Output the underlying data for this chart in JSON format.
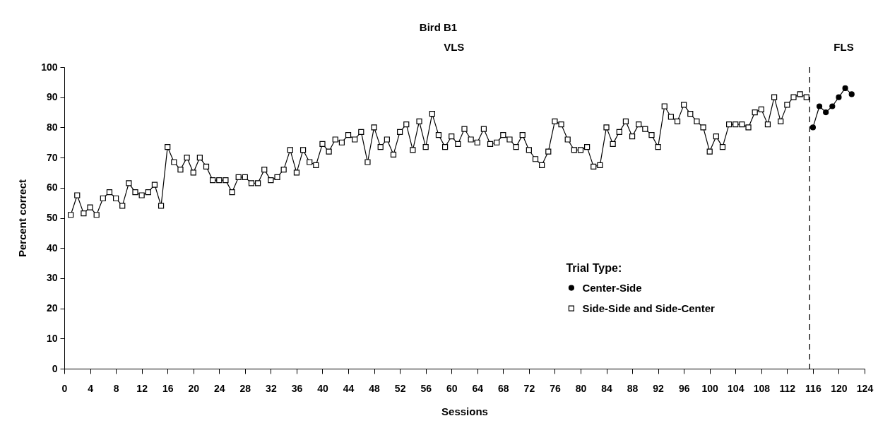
{
  "chart_data": {
    "type": "line",
    "title": "Bird B1",
    "xlabel": "Sessions",
    "ylabel": "Percent correct",
    "legend_title": "Trial Type:",
    "annotations": [
      "VLS",
      "FLS"
    ],
    "xlim": [
      0,
      124
    ],
    "xticks": [
      0,
      4,
      8,
      12,
      16,
      20,
      24,
      28,
      32,
      36,
      40,
      44,
      48,
      52,
      56,
      60,
      64,
      68,
      72,
      76,
      80,
      84,
      88,
      92,
      96,
      100,
      104,
      108,
      112,
      116,
      120,
      124
    ],
    "ylim": [
      0,
      100
    ],
    "yticks": [
      0,
      10,
      20,
      30,
      40,
      50,
      60,
      70,
      80,
      90,
      100
    ],
    "legend": "bottom right",
    "ref_lines": [
      {
        "axis": "x",
        "value": 115.5,
        "color": "#000000",
        "line_style": "dashed"
      }
    ],
    "series": [
      {
        "name": "Center-Side",
        "color": "#000000",
        "marker": "circle",
        "x": [
          116,
          117,
          118,
          119,
          120,
          121,
          122
        ],
        "values": [
          80,
          87,
          85,
          87,
          90,
          93,
          91
        ]
      },
      {
        "name": "Side-Side and Side-Center",
        "color": "#000000",
        "marker": "square",
        "x": [
          1,
          2,
          3,
          4,
          5,
          6,
          7,
          8,
          9,
          10,
          11,
          12,
          13,
          14,
          15,
          16,
          17,
          18,
          19,
          20,
          21,
          22,
          23,
          24,
          25,
          26,
          27,
          28,
          29,
          30,
          31,
          32,
          33,
          34,
          35,
          36,
          37,
          38,
          39,
          40,
          41,
          42,
          43,
          44,
          45,
          46,
          47,
          48,
          49,
          50,
          51,
          52,
          53,
          54,
          55,
          56,
          57,
          58,
          59,
          60,
          61,
          62,
          63,
          64,
          65,
          66,
          67,
          68,
          69,
          70,
          71,
          72,
          73,
          74,
          75,
          76,
          77,
          78,
          79,
          80,
          81,
          82,
          83,
          84,
          85,
          86,
          87,
          88,
          89,
          90,
          91,
          92,
          93,
          94,
          95,
          96,
          97,
          98,
          99,
          100,
          101,
          102,
          103,
          104,
          105,
          106,
          107,
          108,
          109,
          110,
          111,
          112,
          113,
          114,
          115
        ],
        "values": [
          51,
          57.5,
          51.5,
          53.5,
          51,
          56.5,
          58.5,
          56.5,
          54,
          61.5,
          58.5,
          57.5,
          58.5,
          61,
          54,
          73.5,
          68.5,
          66,
          70,
          65,
          70,
          67,
          62.5,
          62.5,
          62.5,
          58.5,
          63.5,
          63.5,
          61.5,
          61.5,
          66,
          62.5,
          63.5,
          66,
          72.5,
          65,
          72.5,
          68.5,
          67.5,
          74.5,
          72,
          76,
          75,
          77.5,
          76,
          78.5,
          68.5,
          80,
          73.5,
          76,
          71,
          78.5,
          81,
          72.5,
          82,
          73.5,
          84.5,
          77.5,
          73.5,
          77,
          74.5,
          79.5,
          76,
          75,
          79.5,
          74.5,
          75,
          77.5,
          76,
          73.5,
          77.5,
          72.5,
          69.5,
          67.5,
          72,
          82,
          81,
          76,
          72.5,
          72.5,
          73.5,
          67,
          67.5,
          80,
          74.5,
          78.5,
          82,
          77,
          81,
          79.5,
          77.5,
          73.5,
          87,
          83.5,
          82,
          87.5,
          84.5,
          82,
          80,
          72,
          77,
          73.5,
          81,
          81,
          81,
          80,
          85,
          86,
          81,
          90,
          82,
          87.5,
          90,
          91,
          90
        ]
      }
    ]
  }
}
